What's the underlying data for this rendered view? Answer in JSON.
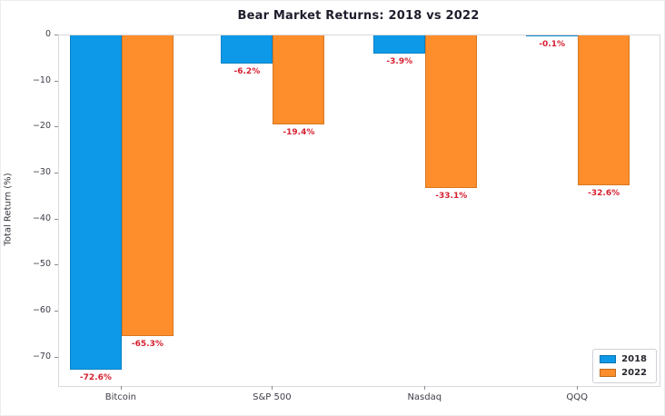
{
  "chart_data": {
    "type": "bar",
    "title": "Bear Market Returns: 2018 vs 2022",
    "ylabel": "Total Return (%)",
    "xlabel": "",
    "categories": [
      "Bitcoin",
      "S&P 500",
      "Nasdaq",
      "QQQ"
    ],
    "series": [
      {
        "name": "2018",
        "color": "#0d99e8",
        "values": [
          -72.6,
          -6.2,
          -3.9,
          -0.1
        ],
        "value_labels": [
          "-72.6%",
          "-6.2%",
          "-3.9%",
          "-0.1%"
        ]
      },
      {
        "name": "2022",
        "color": "#fd8e2b",
        "values": [
          -65.3,
          -19.4,
          -33.1,
          -32.6
        ],
        "value_labels": [
          "-65.3%",
          "-19.4%",
          "-33.1%",
          "-32.6%"
        ]
      }
    ],
    "y_ticks": [
      {
        "label": "0",
        "value": 0
      },
      {
        "label": "−10",
        "value": -10
      },
      {
        "label": "−20",
        "value": -20
      },
      {
        "label": "−30",
        "value": -30
      },
      {
        "label": "−40",
        "value": -40
      },
      {
        "label": "−50",
        "value": -50
      },
      {
        "label": "−60",
        "value": -60
      },
      {
        "label": "−70",
        "value": -70
      }
    ],
    "ylim": [
      -76.2,
      0
    ],
    "grid": false,
    "legend_position": "lower right",
    "value_label_color": "#d62030"
  }
}
